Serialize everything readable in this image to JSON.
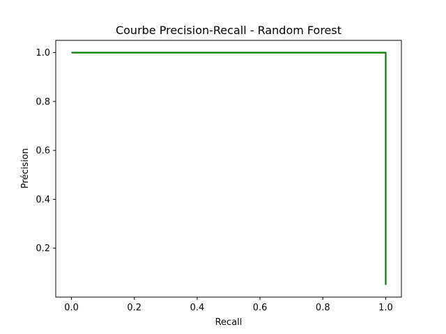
{
  "chart_data": {
    "type": "line",
    "title": "Courbe Precision-Recall - Random Forest",
    "xlabel": "Recall",
    "ylabel": "Précision",
    "xlim": [
      -0.05,
      1.05
    ],
    "ylim": [
      0.0,
      1.05
    ],
    "x_ticks": [
      0.0,
      0.2,
      0.4,
      0.6,
      0.8,
      1.0
    ],
    "x_tick_labels": [
      "0.0",
      "0.2",
      "0.4",
      "0.6",
      "0.8",
      "1.0"
    ],
    "y_ticks": [
      0.2,
      0.4,
      0.6,
      0.8,
      1.0
    ],
    "y_tick_labels": [
      "0.2",
      "0.4",
      "0.6",
      "0.8",
      "1.0"
    ],
    "grid": false,
    "series": [
      {
        "color": "#008000",
        "x": [
          0.0,
          1.0,
          1.0
        ],
        "y": [
          1.0,
          1.0,
          0.05
        ]
      }
    ]
  }
}
